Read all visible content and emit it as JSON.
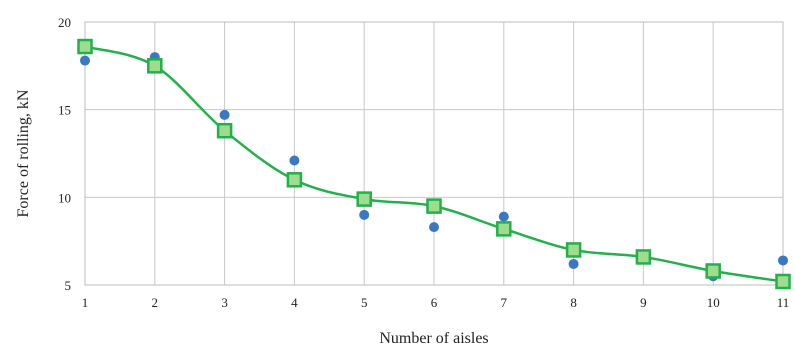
{
  "chart_data": {
    "type": "line",
    "title": "",
    "xlabel": "Number of aisles",
    "ylabel": "Force of rolling, kN",
    "xlim": [
      1,
      11
    ],
    "ylim": [
      5,
      20
    ],
    "x_ticks": [
      "1",
      "2",
      "3",
      "4",
      "5",
      "6",
      "7",
      "8",
      "9",
      "10",
      "11"
    ],
    "y_ticks": [
      "5",
      "10",
      "15",
      "20"
    ],
    "grid": true,
    "legend": "none",
    "series": [
      {
        "marker": "circle",
        "color": "#3a78c2",
        "x": [
          1,
          2,
          3,
          4,
          5,
          6,
          7,
          8,
          9,
          10,
          11
        ],
        "y": [
          17.8,
          18.0,
          14.7,
          12.1,
          9.0,
          8.3,
          8.9,
          6.2,
          6.6,
          5.5,
          6.4
        ]
      },
      {
        "marker": "square",
        "line": "smooth",
        "color": "#22b04a",
        "marker_fill": "#9fdc8f",
        "x": [
          1,
          2,
          3,
          4,
          5,
          6,
          7,
          8,
          9,
          10,
          11
        ],
        "y": [
          18.6,
          17.5,
          13.8,
          11.0,
          9.9,
          9.5,
          8.2,
          7.0,
          6.6,
          5.8,
          5.2
        ]
      }
    ]
  }
}
